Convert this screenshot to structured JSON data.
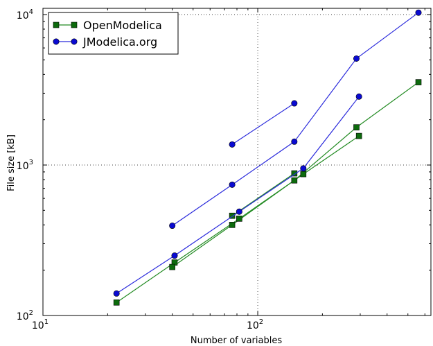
{
  "chart_data": {
    "type": "line",
    "title": "",
    "xlabel": "Number of variables",
    "ylabel": "File size [kB]",
    "xscale": "log",
    "yscale": "log",
    "xlim": [
      10,
      640
    ],
    "ylim": [
      100,
      11000
    ],
    "x_ticks": [
      {
        "value": 10,
        "base": "10",
        "exp": "1"
      },
      {
        "value": 100,
        "base": "10",
        "exp": "2"
      }
    ],
    "y_ticks": [
      {
        "value": 100,
        "base": "10",
        "exp": "2"
      },
      {
        "value": 1000,
        "base": "10",
        "exp": "3"
      },
      {
        "value": 10000,
        "base": "10",
        "exp": "4"
      }
    ],
    "grid": "major, dotted",
    "legend_position": "top-left",
    "series": [
      {
        "name": "OpenModelica",
        "color": "#238b23",
        "marker_color": "#0d6b0d",
        "marker": "square",
        "lines": [
          [
            [
              22,
              122
            ],
            [
              41,
              225
            ],
            [
              82,
              440
            ],
            [
              163,
              870
            ],
            [
              296,
              1560
            ]
          ],
          [
            [
              40,
              210
            ],
            [
              76,
              400
            ],
            [
              148,
              790
            ],
            [
              288,
              1780
            ],
            [
              560,
              3550
            ]
          ],
          [
            [
              76,
              460
            ],
            [
              148,
              880
            ]
          ]
        ]
      },
      {
        "name": "JModelica.org",
        "color": "#2b2bdc",
        "marker_color": "#0a0ad2",
        "marker": "circle",
        "lines": [
          [
            [
              22,
              140
            ],
            [
              41,
              250
            ],
            [
              82,
              490
            ],
            [
              163,
              950
            ],
            [
              296,
              2850
            ]
          ],
          [
            [
              40,
              395
            ],
            [
              76,
              740
            ],
            [
              148,
              1430
            ],
            [
              288,
              5100
            ],
            [
              560,
              10300
            ]
          ],
          [
            [
              76,
              1370
            ],
            [
              148,
              2570
            ]
          ]
        ]
      }
    ]
  }
}
